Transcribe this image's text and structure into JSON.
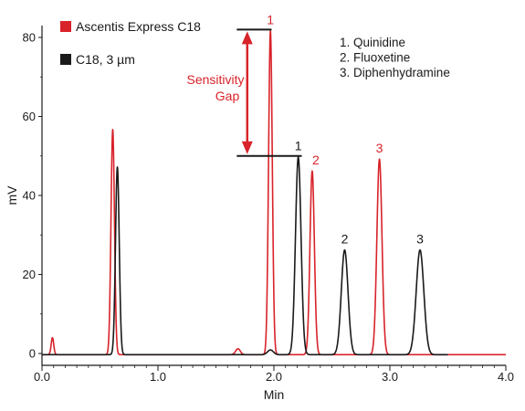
{
  "chart_data": {
    "type": "line",
    "xlabel": "Min",
    "ylabel": "mV",
    "xlim": [
      0,
      4.0
    ],
    "ylim": [
      -3,
      83
    ],
    "x_ticks": [
      0.0,
      1.0,
      2.0,
      3.0,
      4.0
    ],
    "x_tick_labels": [
      "0.0",
      "1.0",
      "2.0",
      "3.0",
      "4.0"
    ],
    "y_ticks": [
      0,
      20,
      40,
      60,
      80
    ],
    "y_tick_labels": [
      "0",
      "20",
      "40",
      "60",
      "80"
    ],
    "grid": false,
    "legend_position": "top-left",
    "colors": {
      "red": "#d8232a",
      "black": "#1a1a1a"
    },
    "series": [
      {
        "name": "Ascentis Express C18",
        "color": "#d8232a",
        "baseline": -0.3,
        "x_end": 4.0,
        "peaks": [
          {
            "t": 0.09,
            "h": 4.3,
            "w": 0.011
          },
          {
            "t": 0.61,
            "h": 57,
            "w": 0.015
          },
          {
            "t": 1.69,
            "h": 1.5,
            "w": 0.02
          },
          {
            "t": 1.97,
            "h": 82,
            "w": 0.016,
            "label": "1"
          },
          {
            "t": 2.33,
            "h": 46.5,
            "w": 0.019,
            "label": "2"
          },
          {
            "t": 2.91,
            "h": 49.5,
            "w": 0.022,
            "label": "3"
          }
        ]
      },
      {
        "name": "C18, 3 µm",
        "color": "#1a1a1a",
        "baseline": -0.3,
        "x_end": 3.5,
        "peaks": [
          {
            "t": 0.65,
            "h": 47.5,
            "w": 0.016
          },
          {
            "t": 1.97,
            "h": 1.2,
            "w": 0.025
          },
          {
            "t": 2.21,
            "h": 50,
            "w": 0.024,
            "label": "1"
          },
          {
            "t": 2.61,
            "h": 26.5,
            "w": 0.029,
            "label": "2"
          },
          {
            "t": 3.26,
            "h": 26.5,
            "w": 0.033,
            "label": "3"
          }
        ]
      }
    ],
    "compound_list": [
      "1.  Quinidine",
      "2.  Fluoxetine",
      "3.  Diphenhydramine"
    ],
    "annotation": {
      "line1": "Sensitivity",
      "line2": "Gap",
      "top_mv": 82,
      "bottom_mv": 50
    }
  }
}
